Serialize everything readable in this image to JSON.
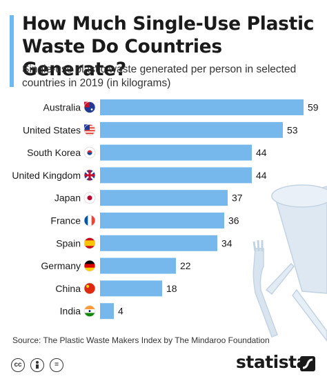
{
  "header": {
    "title": "How Much Single-Use Plastic Waste Do Countries Generate?",
    "subtitle": "Single-use plastic waste generated per person in selected countries in 2019 (in kilograms)"
  },
  "chart_data": {
    "type": "bar",
    "orientation": "horizontal",
    "categories": [
      "Australia",
      "United States",
      "South Korea",
      "United Kingdom",
      "Japan",
      "France",
      "Spain",
      "Germany",
      "China",
      "India"
    ],
    "values": [
      59,
      53,
      44,
      44,
      37,
      36,
      34,
      22,
      18,
      4
    ],
    "title": "How Much Single-Use Plastic Waste Do Countries Generate?",
    "subtitle": "Single-use plastic waste generated per person in selected countries in 2019 (in kilograms)",
    "xlim": [
      0,
      59
    ],
    "grid": false,
    "legend": "none",
    "data_labels": true,
    "bar_color": "#76b8ec",
    "flag_icons": [
      "australia-flag-icon",
      "usa-flag-icon",
      "south-korea-flag-icon",
      "uk-flag-icon",
      "japan-flag-icon",
      "france-flag-icon",
      "spain-flag-icon",
      "germany-flag-icon",
      "china-flag-icon",
      "india-flag-icon"
    ]
  },
  "footer": {
    "source": "Source: The Plastic Waste Makers Index by The Mindaroo Foundation",
    "brand": "statista",
    "license_icons": [
      "cc-icon",
      "by-icon",
      "nd-icon"
    ],
    "cc_text": "cc",
    "nd_text": "="
  }
}
